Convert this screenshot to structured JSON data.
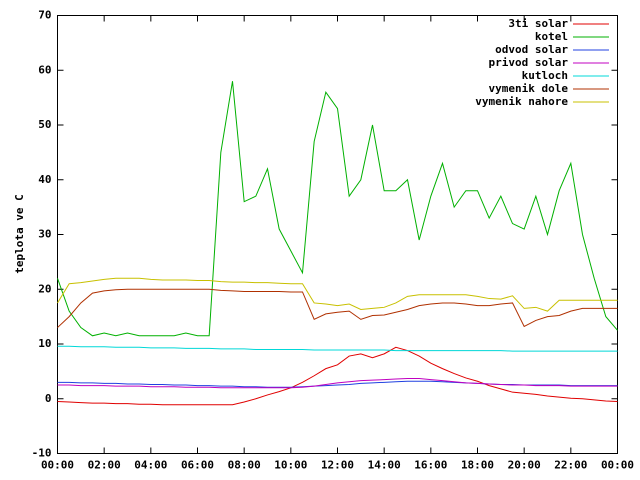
{
  "chart_data": {
    "type": "line",
    "ylabel": "teplota ve C",
    "x": [
      0,
      0.5,
      1,
      1.5,
      2,
      2.5,
      3,
      3.5,
      4,
      4.5,
      5,
      5.5,
      6,
      6.5,
      7,
      7.5,
      8,
      8.5,
      9,
      9.5,
      10,
      10.5,
      11,
      11.5,
      12,
      12.5,
      13,
      13.5,
      14,
      14.5,
      15,
      15.5,
      16,
      16.5,
      17,
      17.5,
      18,
      18.5,
      19,
      19.5,
      20,
      20.5,
      21,
      21.5,
      22,
      22.5,
      23,
      23.5,
      24
    ],
    "xlim": [
      0,
      24
    ],
    "xticks": [
      {
        "value": 0,
        "label": "00:00"
      },
      {
        "value": 2,
        "label": "02:00"
      },
      {
        "value": 4,
        "label": "04:00"
      },
      {
        "value": 6,
        "label": "06:00"
      },
      {
        "value": 8,
        "label": "08:00"
      },
      {
        "value": 10,
        "label": "10:00"
      },
      {
        "value": 12,
        "label": "12:00"
      },
      {
        "value": 14,
        "label": "14:00"
      },
      {
        "value": 16,
        "label": "16:00"
      },
      {
        "value": 18,
        "label": "18:00"
      },
      {
        "value": 20,
        "label": "20:00"
      },
      {
        "value": 22,
        "label": "22:00"
      },
      {
        "value": 24,
        "label": "00:00"
      }
    ],
    "ylim": [
      -10,
      70
    ],
    "yticks": [
      -10,
      0,
      10,
      20,
      30,
      40,
      50,
      60,
      70
    ],
    "grid": false,
    "legend": "top-right",
    "series": [
      {
        "name": "3ti solar",
        "color": "#e00000",
        "values": [
          -0.5,
          -0.6,
          -0.7,
          -0.8,
          -0.8,
          -0.9,
          -0.9,
          -1,
          -1,
          -1.1,
          -1.1,
          -1.1,
          -1.1,
          -1.1,
          -1.1,
          -1.1,
          -0.6,
          0,
          0.7,
          1.3,
          2,
          3,
          4.2,
          5.5,
          6.2,
          7.8,
          8.2,
          7.5,
          8.2,
          9.4,
          8.8,
          7.8,
          6.5,
          5.5,
          4.6,
          3.8,
          3.2,
          2.4,
          1.8,
          1.2,
          1,
          0.8,
          0.5,
          0.3,
          0.1,
          0,
          -0.2,
          -0.4,
          -0.5
        ]
      },
      {
        "name": "kotel",
        "color": "#00b000",
        "values": [
          22,
          16,
          13,
          11.5,
          12,
          11.5,
          12,
          11.5,
          11.5,
          11.5,
          11.5,
          12,
          11.5,
          11.5,
          45,
          58,
          36,
          37,
          42,
          31,
          27,
          23,
          47,
          56,
          53,
          37,
          40,
          50,
          38,
          38,
          40,
          29,
          37,
          43,
          35,
          38,
          38,
          33,
          37,
          32,
          31,
          37,
          30,
          38,
          43,
          30,
          22,
          15,
          12.5
        ]
      },
      {
        "name": "odvod solar",
        "color": "#2040e0",
        "values": [
          3.0,
          3.0,
          2.9,
          2.9,
          2.8,
          2.8,
          2.7,
          2.7,
          2.6,
          2.6,
          2.5,
          2.5,
          2.4,
          2.4,
          2.3,
          2.3,
          2.2,
          2.2,
          2.1,
          2.1,
          2.1,
          2.2,
          2.3,
          2.4,
          2.5,
          2.6,
          2.8,
          2.9,
          3.0,
          3.1,
          3.2,
          3.2,
          3.2,
          3.1,
          3.0,
          2.9,
          2.8,
          2.7,
          2.6,
          2.6,
          2.5,
          2.5,
          2.5,
          2.5,
          2.4,
          2.4,
          2.4,
          2.4,
          2.4
        ]
      },
      {
        "name": "privod solar",
        "color": "#c000c0",
        "values": [
          2.5,
          2.5,
          2.4,
          2.4,
          2.4,
          2.3,
          2.3,
          2.3,
          2.2,
          2.2,
          2.2,
          2.1,
          2.1,
          2.1,
          2.0,
          2.0,
          2.0,
          2.0,
          2.0,
          2.0,
          2.0,
          2.1,
          2.3,
          2.6,
          2.9,
          3.1,
          3.3,
          3.4,
          3.5,
          3.6,
          3.7,
          3.7,
          3.5,
          3.3,
          3.1,
          2.9,
          2.8,
          2.7,
          2.6,
          2.5,
          2.5,
          2.4,
          2.4,
          2.4,
          2.3,
          2.3,
          2.3,
          2.3,
          2.3
        ]
      },
      {
        "name": "kutloch",
        "color": "#00d8d8",
        "values": [
          9.6,
          9.6,
          9.5,
          9.5,
          9.5,
          9.4,
          9.4,
          9.4,
          9.3,
          9.3,
          9.3,
          9.2,
          9.2,
          9.2,
          9.1,
          9.1,
          9.1,
          9.0,
          9.0,
          9.0,
          9.0,
          9.0,
          8.9,
          8.9,
          8.9,
          8.9,
          8.9,
          8.9,
          8.9,
          8.8,
          8.8,
          8.8,
          8.8,
          8.8,
          8.8,
          8.8,
          8.8,
          8.8,
          8.8,
          8.7,
          8.7,
          8.7,
          8.7,
          8.7,
          8.7,
          8.7,
          8.7,
          8.7,
          8.7
        ]
      },
      {
        "name": "vymenik dole",
        "color": "#b03000",
        "values": [
          13,
          15,
          17.5,
          19.3,
          19.7,
          19.9,
          20,
          20,
          20,
          20,
          20,
          20,
          20,
          20,
          19.8,
          19.7,
          19.6,
          19.6,
          19.6,
          19.6,
          19.5,
          19.5,
          14.5,
          15.5,
          15.8,
          16,
          14.5,
          15.2,
          15.3,
          15.8,
          16.3,
          17,
          17.3,
          17.5,
          17.5,
          17.3,
          17,
          17,
          17.3,
          17.5,
          13.2,
          14.3,
          15,
          15.2,
          16,
          16.5,
          16.5,
          16.5,
          16.5
        ]
      },
      {
        "name": "vymenik nahore",
        "color": "#c8c000",
        "values": [
          17.5,
          21,
          21.2,
          21.5,
          21.8,
          22,
          22,
          22,
          21.8,
          21.7,
          21.7,
          21.7,
          21.6,
          21.6,
          21.4,
          21.3,
          21.3,
          21.2,
          21.2,
          21.1,
          21,
          21,
          17.5,
          17.3,
          17,
          17.3,
          16.3,
          16.5,
          16.7,
          17.5,
          18.7,
          19,
          19,
          19,
          19,
          19,
          18.7,
          18.3,
          18.2,
          18.8,
          16.5,
          16.7,
          16,
          18,
          18,
          18,
          18,
          18,
          18
        ]
      }
    ]
  }
}
